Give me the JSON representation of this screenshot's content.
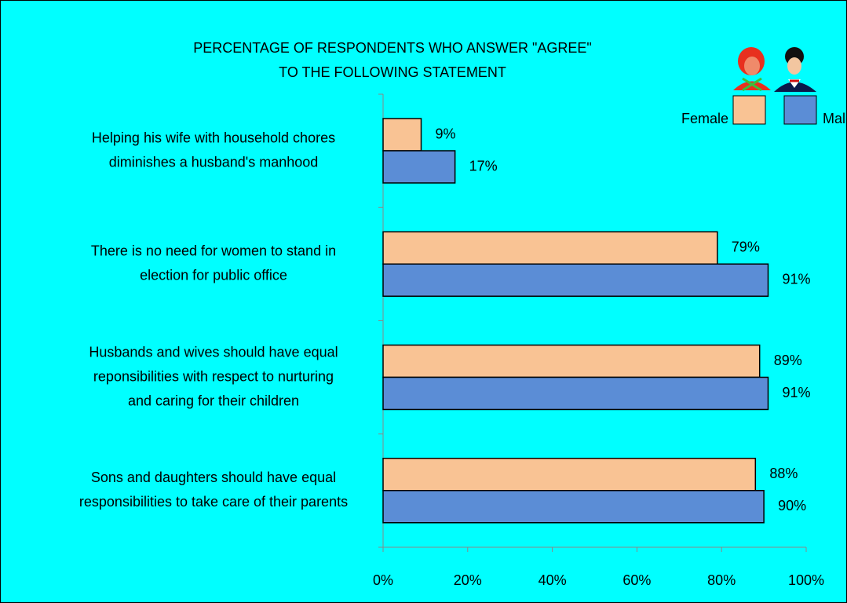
{
  "chart_data": {
    "type": "hbar",
    "title": [
      "PERCENTAGE OF RESPONDENTS WHO ANSWER \"AGREE\"",
      "TO THE FOLLOWING STATEMENT"
    ],
    "categories": [
      [
        "Helping his wife with household chores",
        "diminishes a husband's manhood"
      ],
      [
        "There is no need for women to stand in",
        "election for public office"
      ],
      [
        "Husbands and wives should have equal",
        "reponsibilities with respect to nurturing",
        "and caring for their children"
      ],
      [
        "Sons and daughters should have equal",
        "responsibilities to take care of their parents"
      ]
    ],
    "series": [
      {
        "name": "Female",
        "color": "#f9c394",
        "values": [
          9,
          79,
          89,
          88
        ],
        "value_labels": [
          "9%",
          "79%",
          "89%",
          "88%"
        ]
      },
      {
        "name": "Male",
        "color": "#5b8dd6",
        "values": [
          17,
          91,
          91,
          90
        ],
        "value_labels": [
          "17%",
          "91%",
          "91%",
          "90%"
        ]
      }
    ],
    "xlim": [
      0,
      100
    ],
    "xticks": [
      {
        "value": 0,
        "label": "0%"
      },
      {
        "value": 20,
        "label": "20%"
      },
      {
        "value": 40,
        "label": "40%"
      },
      {
        "value": 60,
        "label": "60%"
      },
      {
        "value": 80,
        "label": "80%"
      },
      {
        "value": 100,
        "label": "100%"
      }
    ],
    "legend": "top-right"
  }
}
